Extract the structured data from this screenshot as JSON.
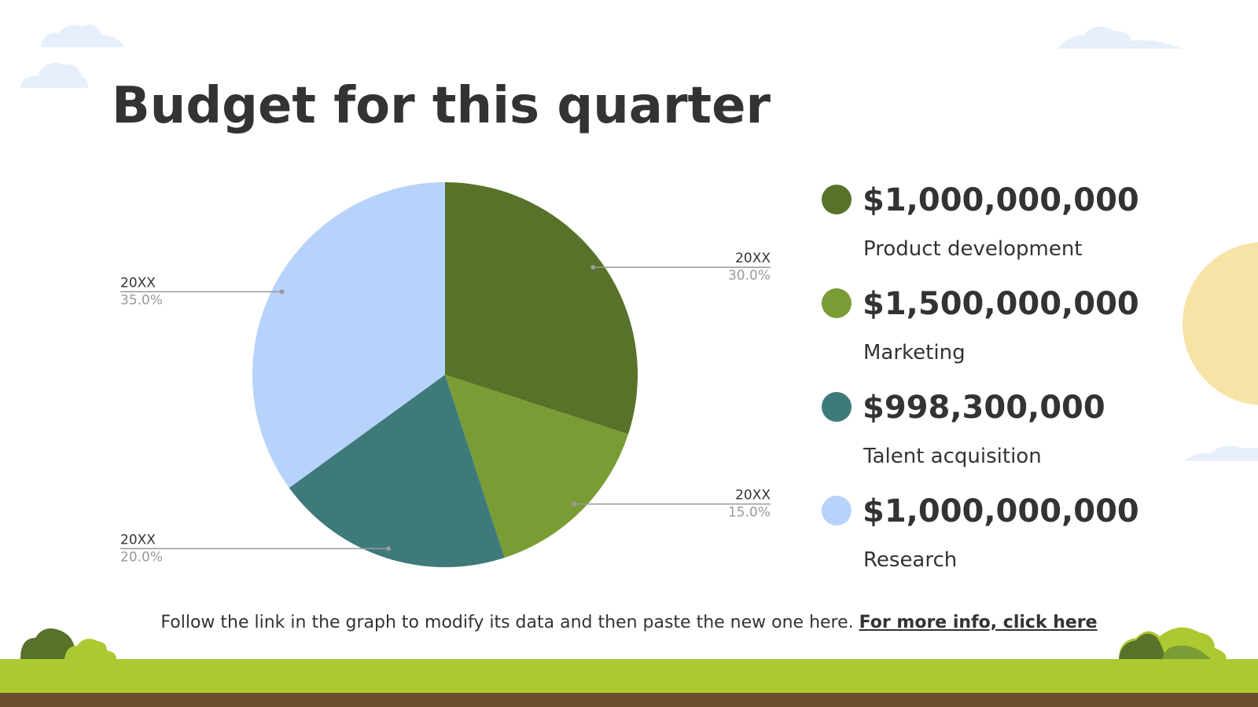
{
  "chart_data": {
    "type": "pie",
    "title": "Budget for this quarter",
    "categories": [
      "20XX",
      "20XX",
      "20XX",
      "20XX"
    ],
    "values": [
      30,
      15,
      20,
      35
    ],
    "value_labels": [
      "30.0%",
      "15.0%",
      "20.0%",
      "35.0%"
    ],
    "colors": [
      "#58722a",
      "#7a9c35",
      "#3f7a7a",
      "#b7d3fb"
    ]
  },
  "budget_items": [
    {
      "amount": "$1,000,000,000",
      "label": "Product development"
    },
    {
      "amount": "$1,500,000,000",
      "label": "Marketing"
    },
    {
      "amount": "$998,300,000",
      "label": "Talent acquisition"
    },
    {
      "amount": "$1,000,000,000",
      "label": "Research"
    }
  ],
  "footer": {
    "text": "Follow the link in the graph to modify its data and then paste the new one here.",
    "link": "For more info, click here"
  }
}
